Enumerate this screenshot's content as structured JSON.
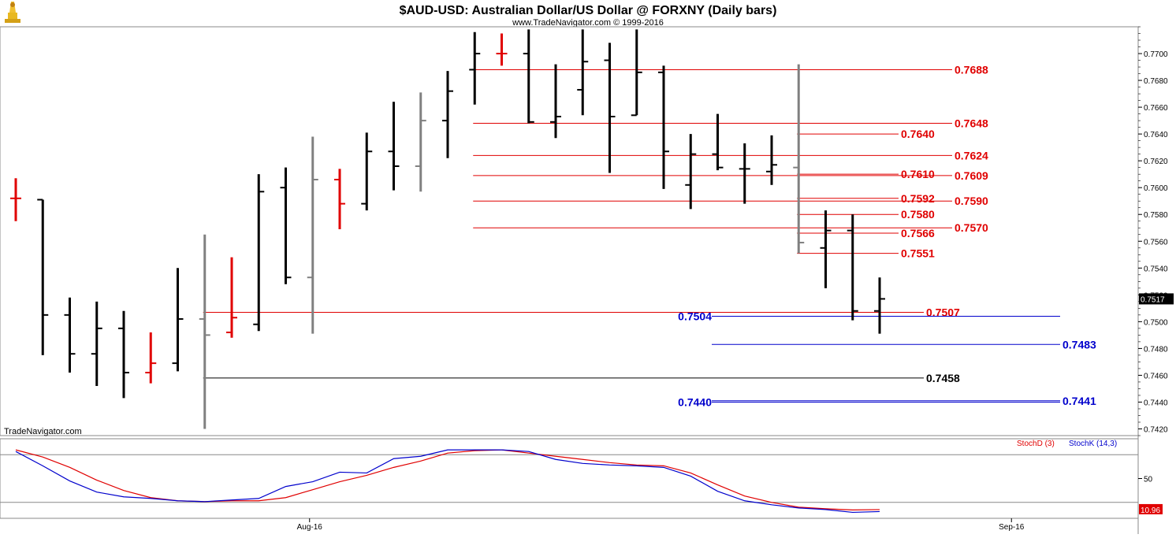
{
  "header": {
    "title": "$AUD-USD:  Australian Dollar/US Dollar @ FORXNY  (Daily bars)",
    "subtitle": "www.TradeNavigator.com © 1999-2016",
    "watermark": "TradeNavigator.com"
  },
  "colors": {
    "up_bar": "#000000",
    "down_bar": "#000000",
    "red_bar": "#e00000",
    "gray_bar": "#808080",
    "level_red": "#e00000",
    "level_blue": "#0000cc",
    "level_black": "#000000",
    "stoch_d": "#e00000",
    "stoch_k": "#0000cc"
  },
  "chart_data": [
    {
      "type": "ohlc",
      "price_axis": {
        "ylim": [
          0.7415,
          0.772
        ],
        "ticks": [
          "0.7700",
          "0.7680",
          "0.7660",
          "0.7640",
          "0.7620",
          "0.7600",
          "0.7580",
          "0.7560",
          "0.7540",
          "0.7520",
          "0.7500",
          "0.7480",
          "0.7460",
          "0.7440",
          "0.7420"
        ],
        "tick_values": [
          0.77,
          0.768,
          0.766,
          0.764,
          0.762,
          0.76,
          0.758,
          0.756,
          0.754,
          0.752,
          0.75,
          0.748,
          0.746,
          0.744,
          0.742
        ],
        "last_price": "0.7517",
        "last_price_value": 0.7517
      },
      "x_axis": {
        "labels": [
          {
            "text": "Aug-16",
            "index": 11
          },
          {
            "text": "Sep-16",
            "index": 37
          }
        ]
      },
      "bars": [
        {
          "i": 0,
          "o": 0.7592,
          "h": 0.7607,
          "l": 0.7575,
          "c": 0.7592,
          "color": "red"
        },
        {
          "i": 1,
          "o": 0.7591,
          "h": 0.7591,
          "l": 0.7475,
          "c": 0.7505,
          "color": "black"
        },
        {
          "i": 2,
          "o": 0.7505,
          "h": 0.7518,
          "l": 0.7462,
          "c": 0.7476,
          "color": "black"
        },
        {
          "i": 3,
          "o": 0.7476,
          "h": 0.7515,
          "l": 0.7452,
          "c": 0.7495,
          "color": "black"
        },
        {
          "i": 4,
          "o": 0.7495,
          "h": 0.7508,
          "l": 0.7443,
          "c": 0.7462,
          "color": "black"
        },
        {
          "i": 5,
          "o": 0.7462,
          "h": 0.7492,
          "l": 0.7454,
          "c": 0.7469,
          "color": "red"
        },
        {
          "i": 6,
          "o": 0.7469,
          "h": 0.754,
          "l": 0.7463,
          "c": 0.7502,
          "color": "black"
        },
        {
          "i": 7,
          "o": 0.7502,
          "h": 0.7565,
          "l": 0.742,
          "c": 0.749,
          "color": "gray"
        },
        {
          "i": 8,
          "o": 0.7492,
          "h": 0.7548,
          "l": 0.7488,
          "c": 0.7503,
          "color": "red"
        },
        {
          "i": 9,
          "o": 0.7498,
          "h": 0.761,
          "l": 0.7493,
          "c": 0.7597,
          "color": "black"
        },
        {
          "i": 10,
          "o": 0.76,
          "h": 0.7615,
          "l": 0.7528,
          "c": 0.7533,
          "color": "black"
        },
        {
          "i": 11,
          "o": 0.7533,
          "h": 0.7638,
          "l": 0.7491,
          "c": 0.7606,
          "color": "gray"
        },
        {
          "i": 12,
          "o": 0.7606,
          "h": 0.7614,
          "l": 0.7569,
          "c": 0.7588,
          "color": "red"
        },
        {
          "i": 13,
          "o": 0.7588,
          "h": 0.7641,
          "l": 0.7583,
          "c": 0.7627,
          "color": "black"
        },
        {
          "i": 14,
          "o": 0.7627,
          "h": 0.7664,
          "l": 0.7598,
          "c": 0.7616,
          "color": "black"
        },
        {
          "i": 15,
          "o": 0.7616,
          "h": 0.7671,
          "l": 0.7597,
          "c": 0.765,
          "color": "gray"
        },
        {
          "i": 16,
          "o": 0.765,
          "h": 0.7687,
          "l": 0.7622,
          "c": 0.7672,
          "color": "black"
        },
        {
          "i": 17,
          "o": 0.7688,
          "h": 0.7716,
          "l": 0.7662,
          "c": 0.77,
          "color": "black"
        },
        {
          "i": 18,
          "o": 0.77,
          "h": 0.7715,
          "l": 0.7691,
          "c": 0.77,
          "color": "red"
        },
        {
          "i": 19,
          "o": 0.77,
          "h": 0.7718,
          "l": 0.7648,
          "c": 0.7649,
          "color": "black"
        },
        {
          "i": 20,
          "o": 0.7649,
          "h": 0.7692,
          "l": 0.7637,
          "c": 0.7653,
          "color": "black"
        },
        {
          "i": 21,
          "o": 0.7673,
          "h": 0.7718,
          "l": 0.7654,
          "c": 0.7694,
          "color": "black"
        },
        {
          "i": 22,
          "o": 0.7695,
          "h": 0.7708,
          "l": 0.7611,
          "c": 0.7653,
          "color": "black"
        },
        {
          "i": 23,
          "o": 0.7654,
          "h": 0.7718,
          "l": 0.7654,
          "c": 0.7686,
          "color": "black"
        },
        {
          "i": 24,
          "o": 0.7686,
          "h": 0.7691,
          "l": 0.7599,
          "c": 0.7627,
          "color": "black"
        },
        {
          "i": 25,
          "o": 0.7602,
          "h": 0.764,
          "l": 0.7584,
          "c": 0.7625,
          "color": "black"
        },
        {
          "i": 26,
          "o": 0.7625,
          "h": 0.7655,
          "l": 0.7613,
          "c": 0.7615,
          "color": "black"
        },
        {
          "i": 27,
          "o": 0.7614,
          "h": 0.7633,
          "l": 0.7588,
          "c": 0.7614,
          "color": "black"
        },
        {
          "i": 28,
          "o": 0.7612,
          "h": 0.7639,
          "l": 0.7602,
          "c": 0.7617,
          "color": "black"
        },
        {
          "i": 29,
          "o": 0.7615,
          "h": 0.7692,
          "l": 0.7551,
          "c": 0.7559,
          "color": "gray"
        },
        {
          "i": 30,
          "o": 0.7555,
          "h": 0.7583,
          "l": 0.7525,
          "c": 0.7568,
          "color": "black"
        },
        {
          "i": 31,
          "o": 0.7568,
          "h": 0.758,
          "l": 0.7501,
          "c": 0.7508,
          "color": "black"
        },
        {
          "i": 32,
          "o": 0.7508,
          "h": 0.7533,
          "l": 0.7491,
          "c": 0.7517,
          "color": "black"
        }
      ],
      "levels": [
        {
          "label": "0.7688",
          "value": 0.7688,
          "color": "red",
          "from": 17,
          "to": "far"
        },
        {
          "label": "0.7648",
          "value": 0.7648,
          "color": "red",
          "from": 17,
          "to": "far"
        },
        {
          "label": "0.7640",
          "value": 0.764,
          "color": "red",
          "from": 29,
          "to": "mid"
        },
        {
          "label": "0.7624",
          "value": 0.7624,
          "color": "red",
          "from": 17,
          "to": "far"
        },
        {
          "label": "0.7610",
          "value": 0.761,
          "color": "red",
          "from": 29,
          "to": "mid"
        },
        {
          "label": "0.7609",
          "value": 0.7609,
          "color": "red",
          "from": 17,
          "to": "far"
        },
        {
          "label": "0.7592",
          "value": 0.7592,
          "color": "red",
          "from": 29,
          "to": "mid"
        },
        {
          "label": "0.7590",
          "value": 0.759,
          "color": "red",
          "from": 17,
          "to": "far"
        },
        {
          "label": "0.7580",
          "value": 0.758,
          "color": "red",
          "from": 29,
          "to": "mid"
        },
        {
          "label": "0.7570",
          "value": 0.757,
          "color": "red",
          "from": 17,
          "to": "far"
        },
        {
          "label": "0.7566",
          "value": 0.7566,
          "color": "red",
          "from": 29,
          "to": "mid"
        },
        {
          "label": "0.7551",
          "value": 0.7551,
          "color": "red",
          "from": 29,
          "to": "mid"
        },
        {
          "label": "0.7507",
          "value": 0.7507,
          "color": "red",
          "from": 7,
          "to": "near"
        },
        {
          "label": "0.7504",
          "value": 0.7504,
          "color": "blue",
          "from": 25,
          "to": "blue_far",
          "label_left": true
        },
        {
          "label": "0.7483",
          "value": 0.7483,
          "color": "blue",
          "from": 25,
          "to": "blue_far"
        },
        {
          "label": "0.7458",
          "value": 0.7458,
          "color": "black",
          "from": 7,
          "to": "near"
        },
        {
          "label": "0.7441",
          "value": 0.7441,
          "color": "blue",
          "from": 25,
          "to": "blue_far"
        },
        {
          "label": "0.7440",
          "value": 0.744,
          "color": "blue",
          "from": 25,
          "to": "blue_far",
          "label_left": true
        }
      ]
    },
    {
      "type": "line",
      "title": "",
      "legend": [
        {
          "name": "StochD (3)",
          "color": "red"
        },
        {
          "name": "StochK (14,3)",
          "color": "blue"
        }
      ],
      "ylim": [
        0,
        100
      ],
      "ticks": [
        "50"
      ],
      "tick_values": [
        50
      ],
      "reference_lines": [
        80,
        20
      ],
      "last_value": "10.96",
      "last_value_num": 10.96,
      "x": [
        0,
        1,
        2,
        3,
        4,
        5,
        6,
        7,
        8,
        9,
        10,
        11,
        12,
        13,
        14,
        15,
        16,
        17,
        18,
        19,
        20,
        21,
        22,
        23,
        24,
        25,
        26,
        27,
        28,
        29,
        30,
        31,
        32
      ],
      "series": [
        {
          "name": "StochD (3)",
          "values": [
            86,
            77,
            64,
            48,
            35,
            26,
            22,
            21,
            22,
            22,
            26,
            36,
            46,
            54,
            64,
            72,
            82,
            85,
            86,
            82,
            78,
            74,
            70,
            67,
            66,
            57,
            42,
            28,
            20,
            14,
            12,
            10.5,
            10.96
          ]
        },
        {
          "name": "StochK (14,3)",
          "values": [
            84,
            66,
            47,
            33,
            27,
            25,
            22,
            21,
            23,
            25,
            40,
            46,
            58,
            57,
            75,
            78,
            86,
            86,
            86,
            84,
            74,
            69,
            67,
            66,
            64,
            53,
            34,
            22,
            17,
            13,
            11,
            7.5,
            8.5
          ]
        }
      ]
    }
  ]
}
